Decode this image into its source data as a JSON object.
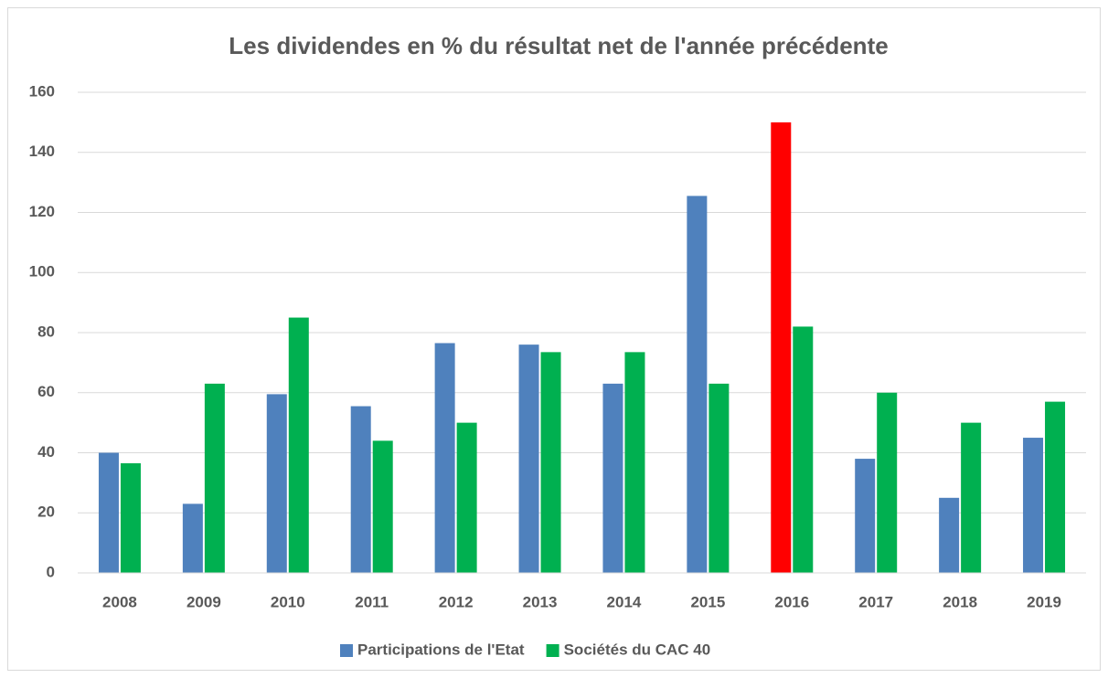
{
  "chart_data": {
    "type": "bar",
    "title": "Les dividendes en % du résultat net de l'année précédente",
    "categories": [
      "2008",
      "2009",
      "2010",
      "2011",
      "2012",
      "2013",
      "2014",
      "2015",
      "2016",
      "2017",
      "2018",
      "2019"
    ],
    "series": [
      {
        "name": "Participations de l'Etat",
        "color": "#4f81bd",
        "colors": [
          "#4f81bd",
          "#4f81bd",
          "#4f81bd",
          "#4f81bd",
          "#4f81bd",
          "#4f81bd",
          "#4f81bd",
          "#4f81bd",
          "#ff0000",
          "#4f81bd",
          "#4f81bd",
          "#4f81bd"
        ],
        "values": [
          40,
          23,
          59.5,
          55.5,
          76.5,
          76,
          63,
          125.5,
          150,
          38,
          25,
          45
        ]
      },
      {
        "name": "Sociétés du CAC 40",
        "color": "#00b050",
        "values": [
          36.5,
          63,
          85,
          44,
          50,
          73.5,
          73.5,
          63,
          82,
          60,
          50,
          57
        ]
      }
    ],
    "ylim": [
      0,
      160
    ],
    "yticks": [
      0,
      20,
      40,
      60,
      80,
      100,
      120,
      140,
      160
    ],
    "grid": true,
    "legend": "bottom"
  }
}
